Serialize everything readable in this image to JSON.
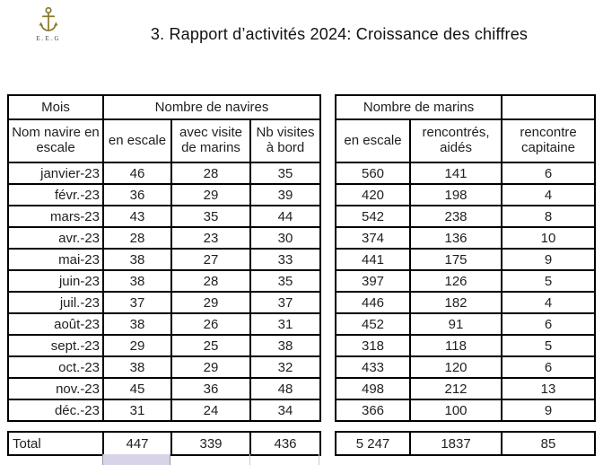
{
  "header": {
    "title": "3. Rapport d’activités 2024: Croissance des chiffres",
    "logo": {
      "icon": "anchor-icon",
      "caption": "E.E.G"
    }
  },
  "ships_table": {
    "group_headers": {
      "mois": "Mois",
      "navires": "Nombre de navires"
    },
    "columns": [
      "Nom navire en escale",
      "en escale",
      "avec visite de marins",
      "Nb visites à bord"
    ],
    "rows": [
      [
        "janvier-23",
        "46",
        "28",
        "35"
      ],
      [
        "févr.-23",
        "36",
        "29",
        "39"
      ],
      [
        "mars-23",
        "43",
        "35",
        "44"
      ],
      [
        "avr.-23",
        "28",
        "23",
        "30"
      ],
      [
        "mai-23",
        "38",
        "27",
        "33"
      ],
      [
        "juin-23",
        "38",
        "28",
        "35"
      ],
      [
        "juil.-23",
        "37",
        "29",
        "37"
      ],
      [
        "août-23",
        "38",
        "26",
        "31"
      ],
      [
        "sept.-23",
        "29",
        "25",
        "38"
      ],
      [
        "oct.-23",
        "38",
        "29",
        "32"
      ],
      [
        "nov.-23",
        "45",
        "36",
        "48"
      ],
      [
        "déc.-23",
        "31",
        "24",
        "34"
      ]
    ],
    "total_label": "Total",
    "totals": [
      "447",
      "339",
      "436"
    ]
  },
  "sailors_table": {
    "group_header": "Nombre de marins",
    "columns": [
      "en escale",
      "rencontrés, aidés",
      "rencontre capitaine"
    ],
    "rows": [
      [
        "560",
        "141",
        "6"
      ],
      [
        "420",
        "198",
        "4"
      ],
      [
        "542",
        "238",
        "8"
      ],
      [
        "374",
        "136",
        "10"
      ],
      [
        "441",
        "175",
        "9"
      ],
      [
        "397",
        "126",
        "5"
      ],
      [
        "446",
        "182",
        "4"
      ],
      [
        "452",
        "91",
        "6"
      ],
      [
        "318",
        "118",
        "5"
      ],
      [
        "433",
        "120",
        "6"
      ],
      [
        "498",
        "212",
        "13"
      ],
      [
        "366",
        "100",
        "9"
      ]
    ],
    "totals": [
      "5 247",
      "1837",
      "85"
    ]
  },
  "colors": {
    "border": "#000000",
    "text": "#1f1f1f",
    "anchor_gold": "#8a7b2f",
    "selection_fill": "#d9d3e9",
    "gridline": "#c9c9c9"
  }
}
